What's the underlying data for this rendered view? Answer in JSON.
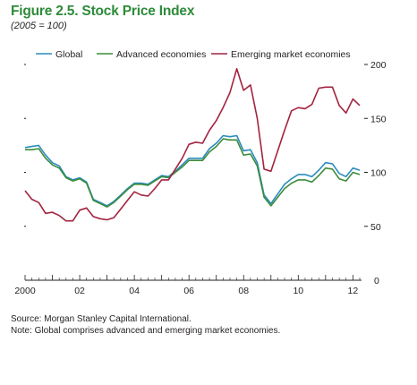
{
  "figure": {
    "title": "Figure 2.5.  Stock Price Index",
    "subtitle": "(2005 = 100)"
  },
  "notes": {
    "source": "Source: Morgan Stanley Capital International.",
    "note": "Note: Global comprises advanced and emerging market economies."
  },
  "chart_data": {
    "type": "line",
    "title": "Figure 2.5.  Stock Price Index",
    "subtitle": "(2005 = 100)",
    "xlabel": "",
    "ylabel": "",
    "xlim": [
      2000,
      2012.25
    ],
    "ylim": [
      0,
      200
    ],
    "x_ticks": [
      2000,
      2002,
      2004,
      2006,
      2008,
      2010,
      2012
    ],
    "x_tick_labels": [
      "2000",
      "02",
      "04",
      "06",
      "08",
      "10",
      "12"
    ],
    "y_ticks": [
      0,
      50,
      100,
      150,
      200
    ],
    "y_tick_labels": [
      "0",
      "50",
      "100",
      "150",
      "200"
    ],
    "grid": false,
    "legend_position": "top",
    "series": [
      {
        "name": "Global",
        "color": "#2b8cbe",
        "points": [
          [
            2000.0,
            123
          ],
          [
            2000.25,
            124
          ],
          [
            2000.5,
            125
          ],
          [
            2000.75,
            116
          ],
          [
            2001.0,
            109
          ],
          [
            2001.25,
            106
          ],
          [
            2001.5,
            96
          ],
          [
            2001.75,
            93
          ],
          [
            2002.0,
            95
          ],
          [
            2002.25,
            91
          ],
          [
            2002.5,
            75
          ],
          [
            2002.75,
            72
          ],
          [
            2003.0,
            69
          ],
          [
            2003.25,
            73
          ],
          [
            2003.5,
            79
          ],
          [
            2003.75,
            85
          ],
          [
            2004.0,
            90
          ],
          [
            2004.25,
            90
          ],
          [
            2004.5,
            89
          ],
          [
            2004.75,
            93
          ],
          [
            2005.0,
            97
          ],
          [
            2005.25,
            96
          ],
          [
            2005.5,
            101
          ],
          [
            2005.75,
            107
          ],
          [
            2006.0,
            113
          ],
          [
            2006.25,
            113
          ],
          [
            2006.5,
            113
          ],
          [
            2006.75,
            122
          ],
          [
            2007.0,
            127
          ],
          [
            2007.25,
            134
          ],
          [
            2007.5,
            133
          ],
          [
            2007.75,
            134
          ],
          [
            2008.0,
            120
          ],
          [
            2008.25,
            121
          ],
          [
            2008.5,
            109
          ],
          [
            2008.75,
            79
          ],
          [
            2009.0,
            71
          ],
          [
            2009.25,
            80
          ],
          [
            2009.5,
            89
          ],
          [
            2009.75,
            94
          ],
          [
            2010.0,
            98
          ],
          [
            2010.25,
            98
          ],
          [
            2010.5,
            96
          ],
          [
            2010.75,
            102
          ],
          [
            2011.0,
            109
          ],
          [
            2011.25,
            108
          ],
          [
            2011.5,
            99
          ],
          [
            2011.75,
            96
          ],
          [
            2012.0,
            104
          ],
          [
            2012.25,
            102
          ]
        ]
      },
      {
        "name": "Advanced economies",
        "color": "#3c8c3c",
        "points": [
          [
            2000.0,
            121
          ],
          [
            2000.25,
            121
          ],
          [
            2000.5,
            122
          ],
          [
            2000.75,
            113
          ],
          [
            2001.0,
            107
          ],
          [
            2001.25,
            104
          ],
          [
            2001.5,
            95
          ],
          [
            2001.75,
            92
          ],
          [
            2002.0,
            94
          ],
          [
            2002.25,
            90
          ],
          [
            2002.5,
            74
          ],
          [
            2002.75,
            71
          ],
          [
            2003.0,
            68
          ],
          [
            2003.25,
            72
          ],
          [
            2003.5,
            78
          ],
          [
            2003.75,
            84
          ],
          [
            2004.0,
            89
          ],
          [
            2004.25,
            89
          ],
          [
            2004.5,
            88
          ],
          [
            2004.75,
            92
          ],
          [
            2005.0,
            96
          ],
          [
            2005.25,
            95
          ],
          [
            2005.5,
            100
          ],
          [
            2005.75,
            105
          ],
          [
            2006.0,
            111
          ],
          [
            2006.25,
            111
          ],
          [
            2006.5,
            111
          ],
          [
            2006.75,
            119
          ],
          [
            2007.0,
            124
          ],
          [
            2007.25,
            131
          ],
          [
            2007.5,
            130
          ],
          [
            2007.75,
            130
          ],
          [
            2008.0,
            116
          ],
          [
            2008.25,
            117
          ],
          [
            2008.5,
            106
          ],
          [
            2008.75,
            77
          ],
          [
            2009.0,
            69
          ],
          [
            2009.25,
            77
          ],
          [
            2009.5,
            85
          ],
          [
            2009.75,
            90
          ],
          [
            2010.0,
            93
          ],
          [
            2010.25,
            93
          ],
          [
            2010.5,
            91
          ],
          [
            2010.75,
            97
          ],
          [
            2011.0,
            104
          ],
          [
            2011.25,
            103
          ],
          [
            2011.5,
            94
          ],
          [
            2011.75,
            92
          ],
          [
            2012.0,
            100
          ],
          [
            2012.25,
            98
          ]
        ]
      },
      {
        "name": "Emerging market economies",
        "color": "#a3233f",
        "points": [
          [
            2000.0,
            83
          ],
          [
            2000.25,
            75
          ],
          [
            2000.5,
            72
          ],
          [
            2000.75,
            62
          ],
          [
            2001.0,
            63
          ],
          [
            2001.25,
            60
          ],
          [
            2001.5,
            55
          ],
          [
            2001.75,
            55
          ],
          [
            2002.0,
            65
          ],
          [
            2002.25,
            67
          ],
          [
            2002.5,
            59
          ],
          [
            2002.75,
            57
          ],
          [
            2003.0,
            56
          ],
          [
            2003.25,
            58
          ],
          [
            2003.5,
            66
          ],
          [
            2003.75,
            74
          ],
          [
            2004.0,
            82
          ],
          [
            2004.25,
            79
          ],
          [
            2004.5,
            78
          ],
          [
            2004.75,
            85
          ],
          [
            2005.0,
            93
          ],
          [
            2005.25,
            93
          ],
          [
            2005.5,
            103
          ],
          [
            2005.75,
            113
          ],
          [
            2006.0,
            126
          ],
          [
            2006.25,
            128
          ],
          [
            2006.5,
            127
          ],
          [
            2006.75,
            139
          ],
          [
            2007.0,
            148
          ],
          [
            2007.25,
            160
          ],
          [
            2007.5,
            174
          ],
          [
            2007.75,
            196
          ],
          [
            2008.0,
            176
          ],
          [
            2008.25,
            181
          ],
          [
            2008.5,
            150
          ],
          [
            2008.75,
            103
          ],
          [
            2009.0,
            101
          ],
          [
            2009.25,
            120
          ],
          [
            2009.5,
            139
          ],
          [
            2009.75,
            157
          ],
          [
            2010.0,
            160
          ],
          [
            2010.25,
            159
          ],
          [
            2010.5,
            163
          ],
          [
            2010.75,
            178
          ],
          [
            2011.0,
            179
          ],
          [
            2011.25,
            179
          ],
          [
            2011.5,
            162
          ],
          [
            2011.75,
            155
          ],
          [
            2012.0,
            168
          ],
          [
            2012.25,
            162
          ]
        ]
      }
    ]
  }
}
